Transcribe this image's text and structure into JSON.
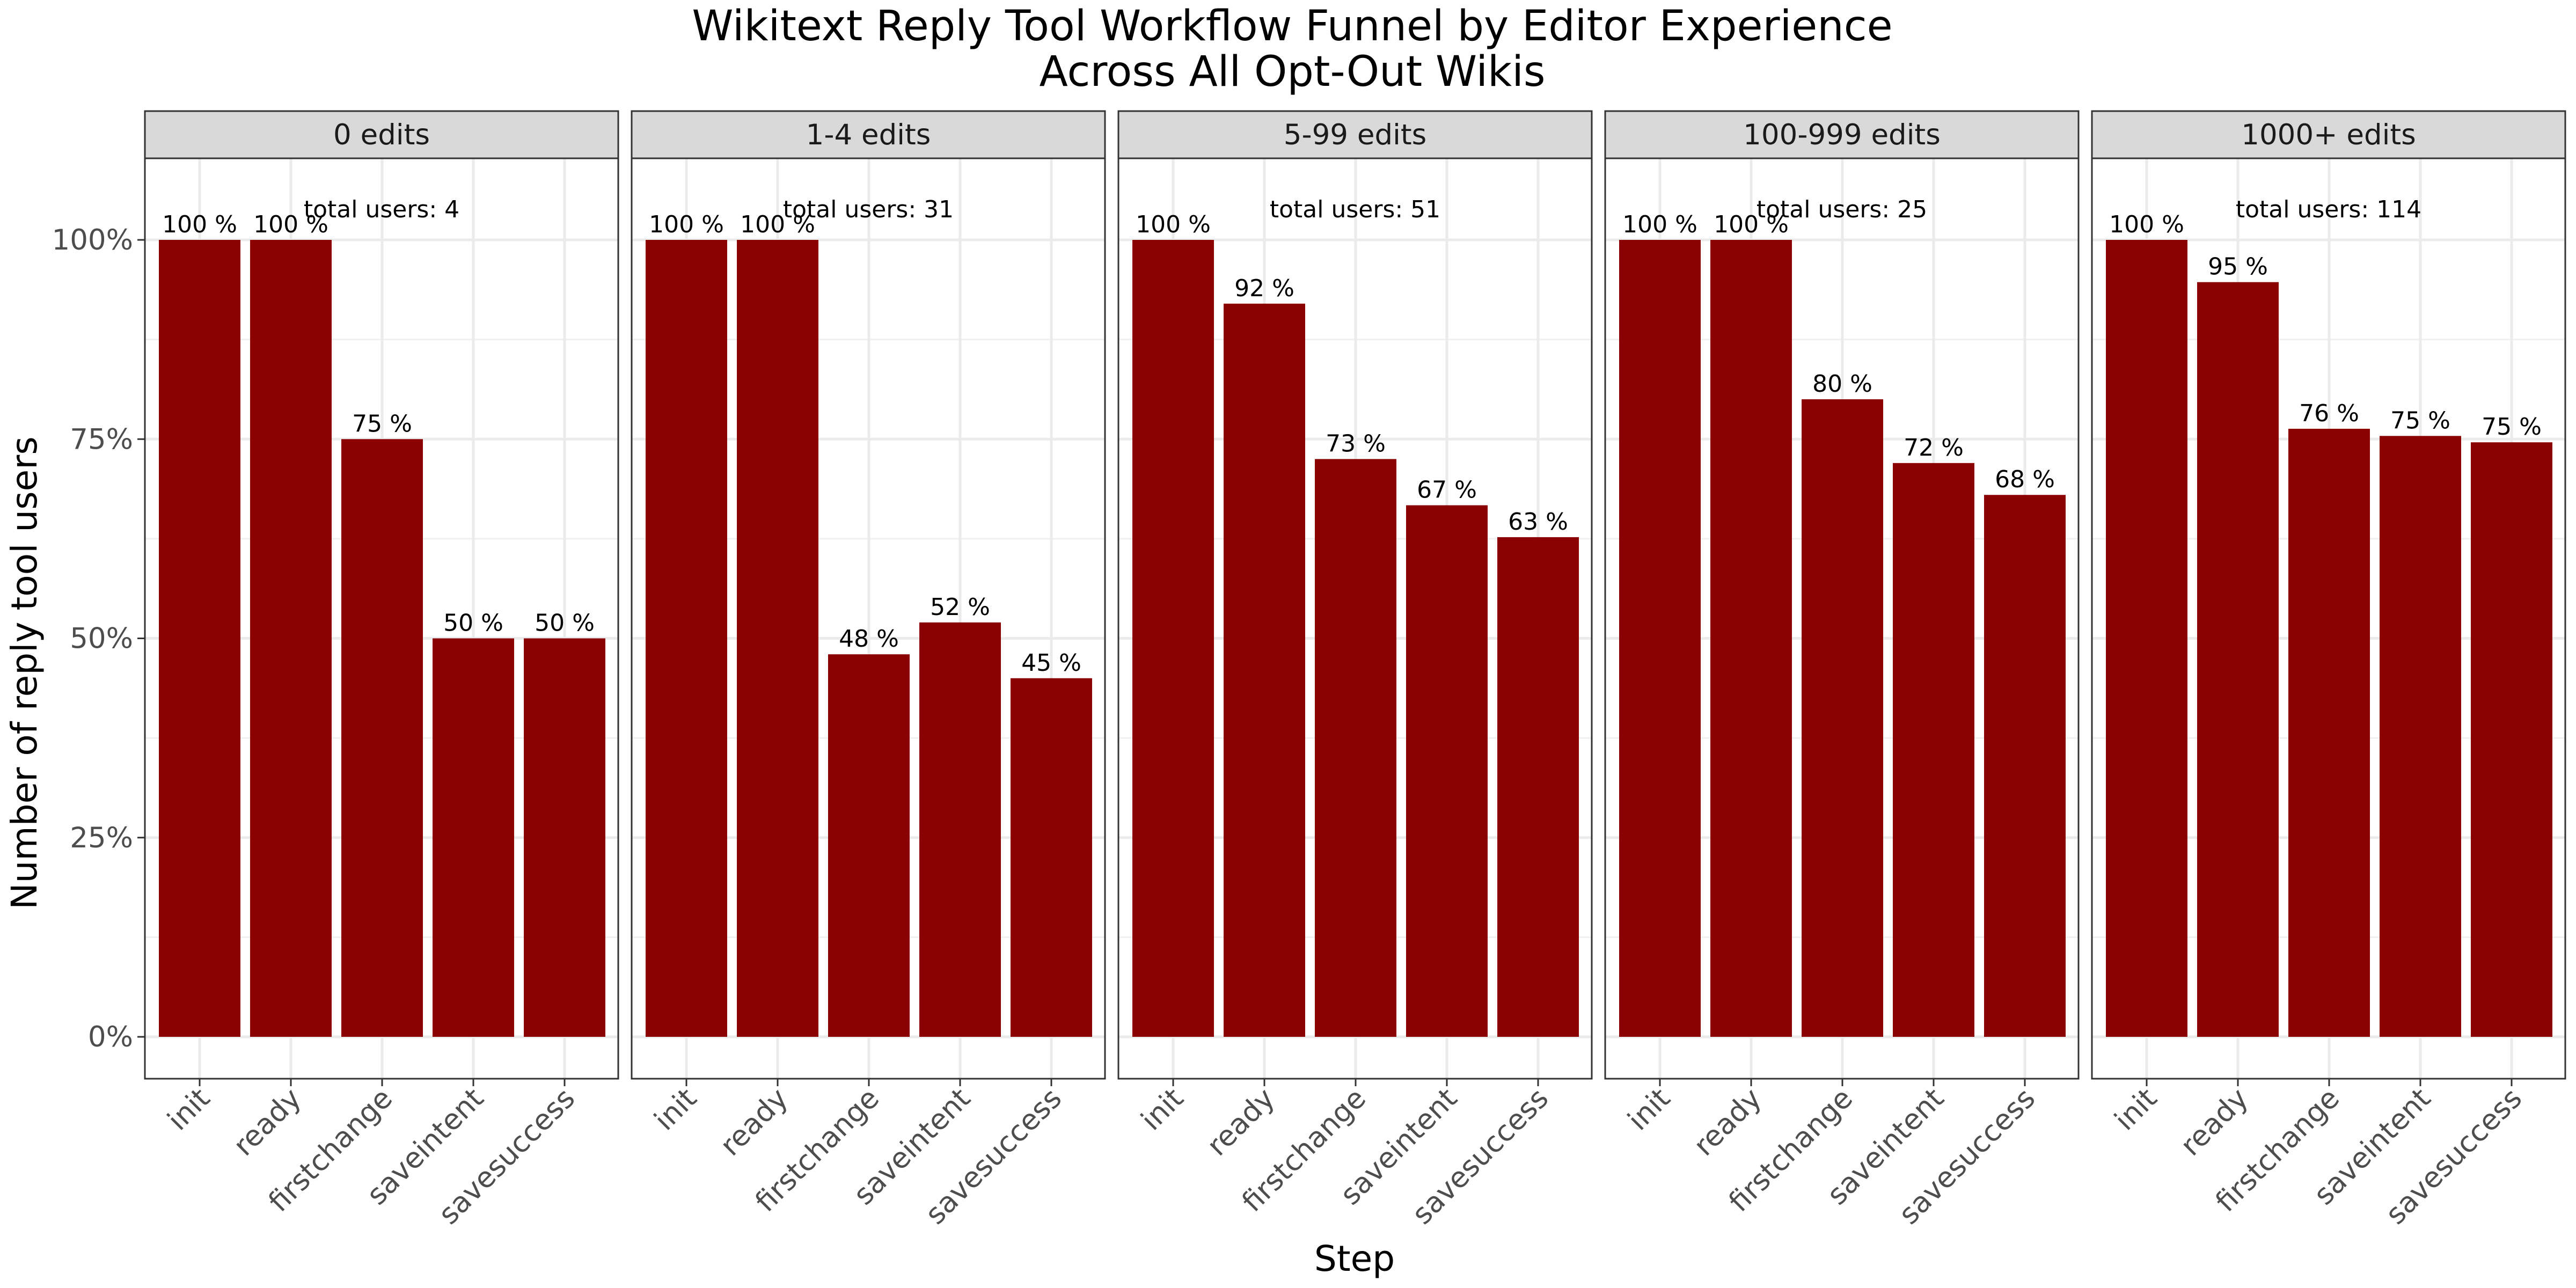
{
  "chart_data": {
    "type": "bar",
    "title": "Wikitext Reply Tool Workflow Funnel by Editor Experience",
    "subtitle": "Across All Opt-Out Wikis",
    "xlabel": "Step",
    "ylabel": "Number of reply tool users",
    "ylim": [
      0,
      1.1
    ],
    "yticks": [
      "0%",
      "25%",
      "50%",
      "75%",
      "100%"
    ],
    "ytick_values": [
      0,
      0.25,
      0.5,
      0.75,
      1.0
    ],
    "categories": [
      "init",
      "ready",
      "firstchange",
      "saveintent",
      "savesuccess"
    ],
    "bar_color": "#8B0000",
    "grid": true,
    "panels": [
      {
        "name": "0 edits",
        "total_label": "total users: 4",
        "values": [
          1.0,
          1.0,
          0.75,
          0.5,
          0.5
        ],
        "labels": [
          "100 %",
          "100 %",
          "75 %",
          "50 %",
          "50 %"
        ]
      },
      {
        "name": "1-4 edits",
        "total_label": "total users: 31",
        "values": [
          1.0,
          1.0,
          0.48,
          0.52,
          0.45
        ],
        "labels": [
          "100 %",
          "100 %",
          "48 %",
          "52 %",
          "45 %"
        ]
      },
      {
        "name": "5-99 edits",
        "total_label": "total users: 51",
        "values": [
          1.0,
          0.92,
          0.725,
          0.667,
          0.627
        ],
        "labels": [
          "100 %",
          "92 %",
          "73 %",
          "67 %",
          "63 %"
        ]
      },
      {
        "name": "100-999 edits",
        "total_label": "total users: 25",
        "values": [
          1.0,
          1.0,
          0.8,
          0.72,
          0.68
        ],
        "labels": [
          "100 %",
          "100 %",
          "80 %",
          "72 %",
          "68 %"
        ]
      },
      {
        "name": "1000+ edits",
        "total_label": "total users: 114",
        "values": [
          1.0,
          0.947,
          0.763,
          0.754,
          0.746
        ],
        "labels": [
          "100 %",
          "95 %",
          "76 %",
          "75 %",
          "75 %"
        ]
      }
    ]
  }
}
